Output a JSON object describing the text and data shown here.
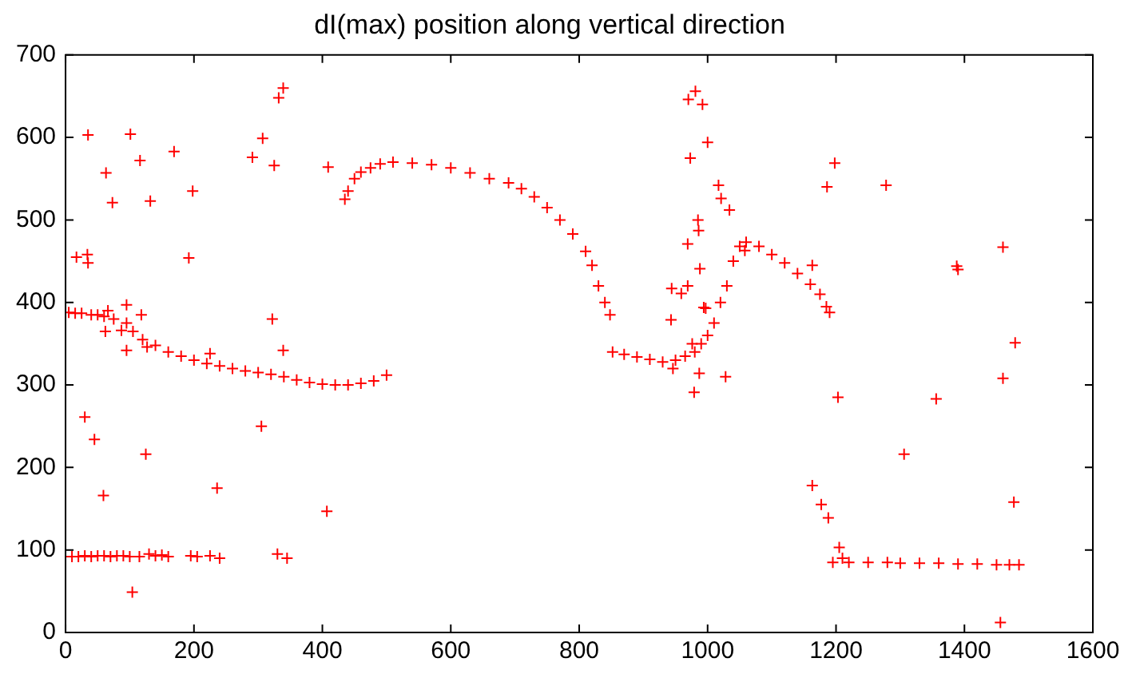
{
  "chart_data": {
    "type": "scatter",
    "title": "dI(max) position along vertical direction",
    "xlim": [
      0,
      1600
    ],
    "xticks": [
      0,
      200,
      400,
      600,
      800,
      1000,
      1200,
      1400,
      1600
    ],
    "ylim": [
      0,
      700
    ],
    "yticks": [
      0,
      100,
      200,
      300,
      400,
      500,
      600,
      700
    ],
    "grid": false,
    "marker": "cross",
    "series": [
      {
        "color": "#ff0000",
        "x": [
          95,
          105,
          120,
          140,
          160,
          180,
          200,
          220,
          240,
          260,
          280,
          300,
          320,
          340,
          360,
          380,
          400,
          420,
          440,
          460,
          480,
          500,
          435,
          440,
          450,
          460,
          475,
          490,
          510,
          540,
          570,
          600,
          630,
          660,
          690,
          710,
          730,
          750,
          770,
          790,
          810,
          820,
          830,
          840,
          848,
          852,
          870,
          890,
          910,
          930,
          950,
          965,
          980,
          990,
          1000,
          1010,
          1020,
          1030,
          1040,
          1050,
          1060,
          1080,
          1100,
          1120,
          1140,
          1160,
          1175,
          1185,
          1190,
          10,
          20,
          30,
          40,
          50,
          60,
          70,
          80,
          90,
          100,
          115,
          130,
          140,
          150,
          160,
          195,
          205,
          225,
          240,
          330,
          345,
          1195,
          1205,
          1210,
          1220,
          1250,
          1280,
          1300,
          1330,
          1360,
          1390,
          1420,
          1450,
          1470,
          1485,
          5,
          15,
          25,
          40,
          50,
          60,
          75,
          17,
          34,
          35,
          35,
          101,
          63,
          73,
          116,
          132,
          169,
          198,
          192,
          95,
          66,
          62,
          87,
          95,
          127,
          118,
          30,
          45,
          125,
          59,
          236,
          104,
          291,
          307,
          325,
          332,
          339,
          322,
          339,
          305,
          407,
          409,
          225,
          981,
          970,
          992,
          1000,
          973,
          985,
          986,
          969,
          988,
          944,
          959,
          969,
          943,
          997,
          979,
          987,
          976,
          946,
          1017,
          1021,
          1034,
          994,
          1028,
          1058,
          1163,
          1198,
          1186,
          1278,
          1203,
          1356,
          1306,
          1163,
          1177,
          1188,
          1388,
          1390,
          1460,
          1479,
          1460,
          1477,
          1456
        ],
        "values": [
          375,
          365,
          355,
          348,
          340,
          335,
          330,
          326,
          323,
          320,
          317,
          315,
          313,
          310,
          306,
          303,
          301,
          300,
          300,
          302,
          305,
          312,
          525,
          535,
          550,
          558,
          563,
          568,
          570,
          569,
          567,
          563,
          557,
          550,
          545,
          538,
          528,
          515,
          500,
          483,
          462,
          445,
          420,
          400,
          385,
          340,
          337,
          334,
          331,
          328,
          330,
          335,
          340,
          350,
          360,
          375,
          400,
          420,
          450,
          468,
          473,
          468,
          458,
          448,
          435,
          422,
          410,
          395,
          388,
          92,
          92,
          93,
          92,
          93,
          93,
          92,
          93,
          93,
          92,
          92,
          95,
          93,
          94,
          92,
          93,
          92,
          93,
          90,
          95,
          90,
          85,
          103,
          90,
          85,
          85,
          85,
          84,
          84,
          84,
          83,
          83,
          82,
          82,
          82,
          388,
          387,
          387,
          385,
          385,
          383,
          380,
          455,
          458,
          448,
          603,
          604,
          557,
          521,
          572,
          523,
          583,
          535,
          454,
          397,
          390,
          365,
          366,
          342,
          346,
          385,
          261,
          234,
          216,
          166,
          175,
          49,
          576,
          599,
          566,
          648,
          660,
          380,
          342,
          250,
          147,
          564,
          338,
          656,
          646,
          640,
          594,
          575,
          500,
          487,
          471,
          441,
          417,
          411,
          420,
          379,
          393,
          291,
          314,
          350,
          320,
          542,
          526,
          512,
          394,
          310,
          463,
          445,
          569,
          540,
          542,
          285,
          283,
          216,
          178,
          155,
          139,
          444,
          440,
          467,
          351,
          308,
          158,
          12
        ]
      }
    ]
  }
}
